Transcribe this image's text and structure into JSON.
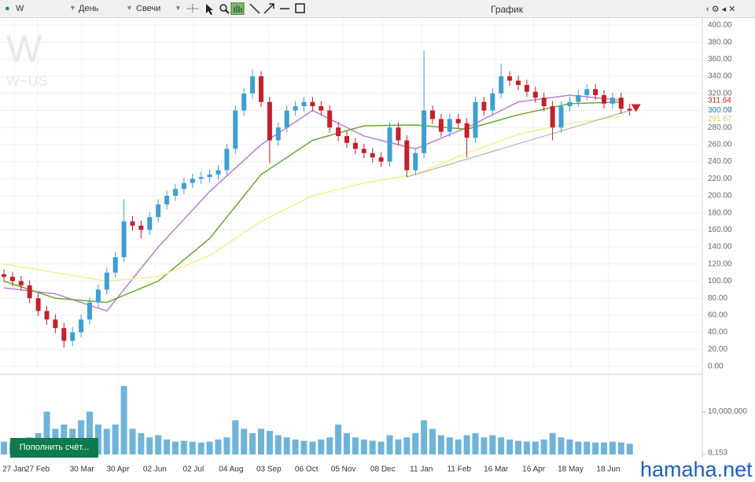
{
  "toolbar": {
    "symbol": "W",
    "interval": "День",
    "style": "Свечи",
    "title": "График"
  },
  "watermark": {
    "symbol": "W",
    "ticker": "W~US"
  },
  "button": "Пополнить счёт...",
  "site": "hamaha.net",
  "chart_data": {
    "type": "candlestick",
    "up_color": "#3d9fd3",
    "down_color": "#c4202c",
    "grid": true,
    "xlim": [
      -0.5,
      80
    ],
    "ylim": [
      0,
      400
    ],
    "yticks": [
      {
        "value": 0,
        "label": "0.00"
      },
      {
        "value": 20,
        "label": "20.00"
      },
      {
        "value": 40,
        "label": "40.00"
      },
      {
        "value": 60,
        "label": "60.00"
      },
      {
        "value": 80,
        "label": "80.00"
      },
      {
        "value": 100,
        "label": "100.00"
      },
      {
        "value": 120,
        "label": "120.00"
      },
      {
        "value": 140,
        "label": "140.00"
      },
      {
        "value": 160,
        "label": "160.00"
      },
      {
        "value": 180,
        "label": "180.00"
      },
      {
        "value": 200,
        "label": "200.00"
      },
      {
        "value": 220,
        "label": "220.00"
      },
      {
        "value": 240,
        "label": "240.00"
      },
      {
        "value": 260,
        "label": "260.00"
      },
      {
        "value": 280,
        "label": "280.00"
      },
      {
        "value": 300,
        "label": "300.00"
      },
      {
        "value": 320,
        "label": "320.00"
      },
      {
        "value": 340,
        "label": "340.00"
      },
      {
        "value": 360,
        "label": "360.00"
      },
      {
        "value": 380,
        "label": "380.00"
      },
      {
        "value": 400,
        "label": "400.00"
      }
    ],
    "xticks": [
      {
        "value": 1.2,
        "label": "27 Jan"
      },
      {
        "value": 3.9,
        "label": "27 Feb"
      },
      {
        "value": 9.1,
        "label": "30 Mar"
      },
      {
        "value": 13.3,
        "label": "30 Apr"
      },
      {
        "value": 17.6,
        "label": "02 Jun"
      },
      {
        "value": 22.1,
        "label": "02 Jul"
      },
      {
        "value": 26.5,
        "label": "04 Aug"
      },
      {
        "value": 30.9,
        "label": "03 Sep"
      },
      {
        "value": 35.3,
        "label": "06 Oct"
      },
      {
        "value": 39.6,
        "label": "05 Nov"
      },
      {
        "value": 44.2,
        "label": "08 Dec"
      },
      {
        "value": 48.7,
        "label": "11 Jan"
      },
      {
        "value": 53.1,
        "label": "11 Feb"
      },
      {
        "value": 57.4,
        "label": "16 Mar"
      },
      {
        "value": 61.8,
        "label": "16 Apr"
      },
      {
        "value": 66.1,
        "label": "18 May"
      },
      {
        "value": 70.5,
        "label": "18 Jun"
      }
    ],
    "open": [
      108,
      105,
      100,
      95,
      80,
      65,
      55,
      45,
      30,
      40,
      55,
      75,
      90,
      110,
      128,
      170,
      165,
      160,
      175,
      190,
      200,
      208,
      215,
      220,
      222,
      225,
      230,
      255,
      300,
      320,
      340,
      310,
      265,
      280,
      300,
      305,
      310,
      305,
      300,
      280,
      270,
      262,
      255,
      250,
      245,
      240,
      280,
      265,
      230,
      250,
      300,
      290,
      275,
      290,
      285,
      268,
      310,
      300,
      320,
      340,
      335,
      330,
      322,
      315,
      305,
      280,
      305,
      310,
      318,
      325,
      318,
      308,
      315,
      302
    ],
    "high": [
      114,
      111,
      106,
      101,
      86,
      71,
      61,
      51,
      46,
      61,
      81,
      96,
      116,
      134,
      196,
      176,
      171,
      181,
      196,
      206,
      214,
      221,
      226,
      228,
      231,
      236,
      261,
      306,
      326,
      348,
      346,
      316,
      286,
      306,
      311,
      316,
      316,
      311,
      306,
      286,
      276,
      268,
      261,
      256,
      251,
      286,
      286,
      271,
      256,
      370,
      306,
      296,
      296,
      296,
      291,
      316,
      316,
      326,
      355,
      346,
      341,
      336,
      328,
      321,
      311,
      311,
      316,
      324,
      331,
      331,
      324,
      321,
      321,
      308
    ],
    "low": [
      99,
      94,
      89,
      74,
      59,
      49,
      39,
      22,
      24,
      34,
      49,
      69,
      84,
      104,
      122,
      159,
      150,
      154,
      169,
      184,
      194,
      202,
      209,
      214,
      216,
      219,
      224,
      249,
      294,
      314,
      304,
      238,
      259,
      274,
      294,
      299,
      299,
      294,
      274,
      264,
      256,
      249,
      244,
      239,
      234,
      234,
      259,
      222,
      224,
      244,
      284,
      269,
      269,
      279,
      245,
      262,
      294,
      294,
      314,
      329,
      324,
      316,
      309,
      299,
      265,
      274,
      299,
      304,
      312,
      312,
      302,
      302,
      296,
      294
    ],
    "close": [
      105,
      100,
      95,
      80,
      65,
      55,
      45,
      30,
      40,
      55,
      75,
      90,
      110,
      128,
      170,
      165,
      160,
      175,
      190,
      200,
      208,
      215,
      220,
      222,
      225,
      230,
      255,
      300,
      320,
      340,
      310,
      265,
      280,
      300,
      305,
      310,
      305,
      300,
      280,
      270,
      262,
      255,
      250,
      245,
      240,
      280,
      265,
      230,
      250,
      300,
      290,
      275,
      290,
      285,
      268,
      310,
      300,
      320,
      340,
      335,
      330,
      322,
      315,
      305,
      280,
      305,
      310,
      318,
      325,
      318,
      308,
      315,
      302,
      300
    ],
    "indicators": {
      "x": [
        0,
        6,
        12,
        18,
        24,
        30,
        36,
        42,
        48,
        54,
        60,
        66,
        72
      ],
      "series": [
        {
          "color": "#b97fd6",
          "values": [
            92,
            85,
            65,
            140,
            205,
            260,
            300,
            270,
            255,
            280,
            310,
            318,
            312
          ]
        },
        {
          "color": "#6aa832",
          "values": [
            100,
            80,
            75,
            100,
            150,
            225,
            265,
            282,
            283,
            278,
            295,
            308,
            310
          ]
        },
        {
          "color": "#f5f08a",
          "values": [
            120,
            110,
            100,
            105,
            130,
            170,
            200,
            215,
            225,
            250,
            272,
            285,
            293
          ]
        }
      ]
    },
    "trendline": {
      "x": [
        47,
        73
      ],
      "values": [
        222,
        300
      ],
      "color": "#a8a8a8"
    },
    "price_labels": {
      "values": [
        311.64,
        300.07,
        291.67
      ],
      "colors": [
        "#c4202c",
        "#3d9fd3",
        "#d8d060"
      ]
    },
    "volume": {
      "color": "#6fb3d9",
      "ylim": [
        0,
        18000000
      ],
      "yticks": [
        {
          "value": 10000000,
          "label": "10,000,000"
        },
        {
          "value": 8153,
          "label": "8,153"
        }
      ],
      "values": [
        3000000,
        2800000,
        3500000,
        4000000,
        5000000,
        10000000,
        6000000,
        7000000,
        6000000,
        8000000,
        10000000,
        7000000,
        6000000,
        7000000,
        16000000,
        6000000,
        5000000,
        4000000,
        4500000,
        3500000,
        3000000,
        3200000,
        3000000,
        2800000,
        3000000,
        3500000,
        4000000,
        8000000,
        6000000,
        5000000,
        6000000,
        5500000,
        4500000,
        4000000,
        3500000,
        3200000,
        3000000,
        3500000,
        4000000,
        7000000,
        5000000,
        4000000,
        3500000,
        3200000,
        3000000,
        4500000,
        3500000,
        4000000,
        5000000,
        8000000,
        6000000,
        4500000,
        4000000,
        3500000,
        4500000,
        5000000,
        4000000,
        4500000,
        4000000,
        3500000,
        3200000,
        3000000,
        3000000,
        3500000,
        5000000,
        4000000,
        3500000,
        3000000,
        3000000,
        2800000,
        2800000,
        3000000,
        2800000,
        2500000
      ]
    }
  }
}
